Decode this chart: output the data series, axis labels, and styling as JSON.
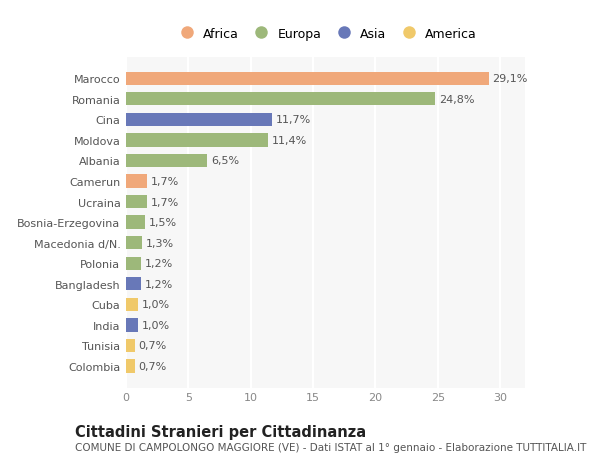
{
  "categories": [
    "Colombia",
    "Tunisia",
    "India",
    "Cuba",
    "Bangladesh",
    "Polonia",
    "Macedonia d/N.",
    "Bosnia-Erzegovina",
    "Ucraina",
    "Camerun",
    "Albania",
    "Moldova",
    "Cina",
    "Romania",
    "Marocco"
  ],
  "values": [
    0.7,
    0.7,
    1.0,
    1.0,
    1.2,
    1.2,
    1.3,
    1.5,
    1.7,
    1.7,
    6.5,
    11.4,
    11.7,
    24.8,
    29.1
  ],
  "labels": [
    "0,7%",
    "0,7%",
    "1,0%",
    "1,0%",
    "1,2%",
    "1,2%",
    "1,3%",
    "1,5%",
    "1,7%",
    "1,7%",
    "6,5%",
    "11,4%",
    "11,7%",
    "24,8%",
    "29,1%"
  ],
  "colors": [
    "#F0C96A",
    "#F0C96A",
    "#6878B8",
    "#F0C96A",
    "#6878B8",
    "#9DB87A",
    "#9DB87A",
    "#9DB87A",
    "#9DB87A",
    "#F0A87A",
    "#9DB87A",
    "#9DB87A",
    "#6878B8",
    "#9DB87A",
    "#F0A87A"
  ],
  "legend_labels": [
    "Africa",
    "Europa",
    "Asia",
    "America"
  ],
  "legend_colors": [
    "#F0A87A",
    "#9DB87A",
    "#6878B8",
    "#F0C96A"
  ],
  "xlim": [
    0,
    32
  ],
  "xticks": [
    0,
    5,
    10,
    15,
    20,
    25,
    30
  ],
  "title": "Cittadini Stranieri per Cittadinanza",
  "subtitle": "COMUNE DI CAMPOLONGO MAGGIORE (VE) - Dati ISTAT al 1° gennaio - Elaborazione TUTTITALIA.IT",
  "bg_color": "#ffffff",
  "plot_bg_color": "#f7f7f7",
  "bar_height": 0.65,
  "label_fontsize": 8,
  "ytick_fontsize": 8,
  "xtick_fontsize": 8,
  "title_fontsize": 10.5,
  "subtitle_fontsize": 7.5,
  "legend_fontsize": 9,
  "grid_color": "#ffffff",
  "grid_linewidth": 1.5
}
